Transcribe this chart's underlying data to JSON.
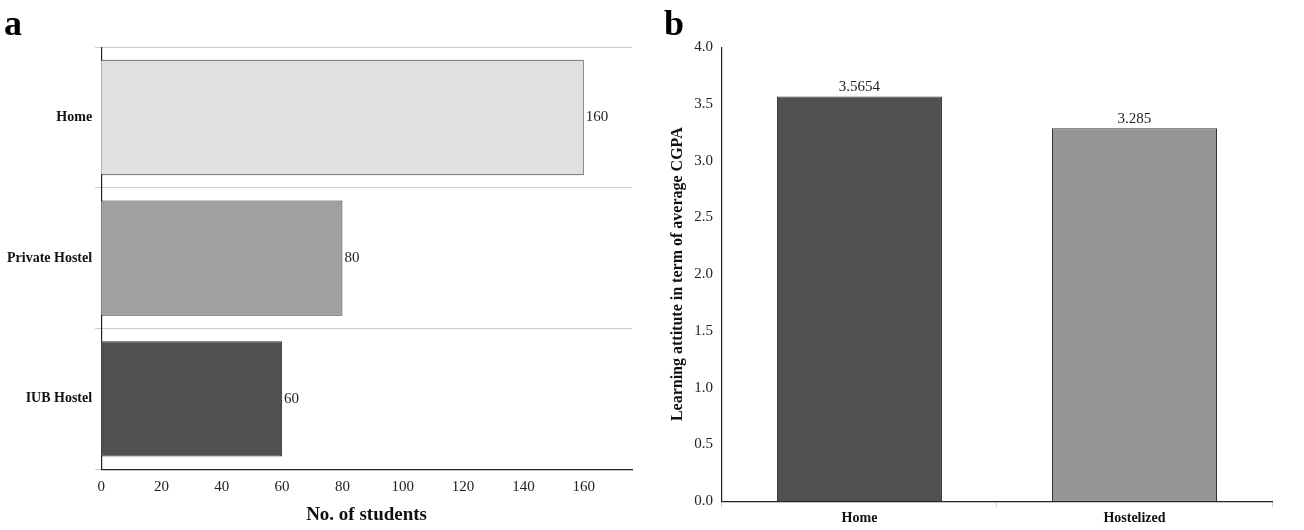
{
  "chart_data": [
    {
      "type": "bar",
      "title": "a",
      "orientation": "horizontal",
      "categories": [
        "Home",
        "Private Hostel",
        "IUB Hostel"
      ],
      "values": [
        160,
        80,
        60
      ],
      "colors": [
        "#e0e0e0",
        "#a0a0a0",
        "#505050"
      ],
      "xlabel": "No. of students",
      "xlim": [
        0,
        176
      ],
      "xticks": [
        0,
        20,
        40,
        60,
        80,
        100,
        120,
        140,
        160
      ],
      "grid": "y",
      "data_labels": true
    },
    {
      "type": "bar",
      "title": "b",
      "categories": [
        "Home",
        "Hostelized"
      ],
      "values": [
        3.5654,
        3.285
      ],
      "colors": [
        "#505050",
        "#969696"
      ],
      "ylabel": "Learning attitute in term of average CGPA",
      "ylim": [
        0,
        4
      ],
      "yticks": [
        {
          "value": 0,
          "label": "0.0"
        },
        {
          "value": 0.5,
          "label": "0.5"
        },
        {
          "value": 1,
          "label": "1.0"
        },
        {
          "value": 1.5,
          "label": "1.5"
        },
        {
          "value": 2,
          "label": "2.0"
        },
        {
          "value": 2.5,
          "label": "2.5"
        },
        {
          "value": 3,
          "label": "3.0"
        },
        {
          "value": 3.5,
          "label": "3.5"
        },
        {
          "value": 4,
          "label": "4.0"
        }
      ],
      "data_labels": true
    }
  ]
}
